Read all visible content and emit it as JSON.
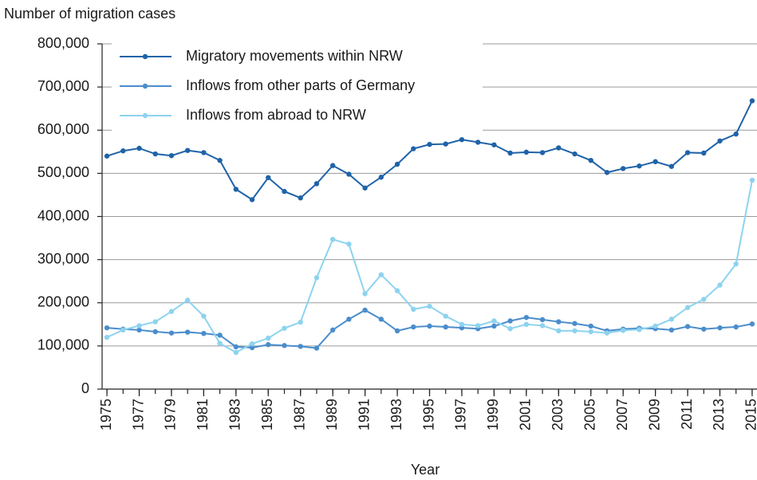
{
  "chart_data": {
    "type": "line",
    "y_label": "Number of migration cases",
    "x_label": "Year",
    "x": [
      1975,
      1976,
      1977,
      1978,
      1979,
      1980,
      1981,
      1982,
      1983,
      1984,
      1985,
      1986,
      1987,
      1988,
      1989,
      1990,
      1991,
      1992,
      1993,
      1994,
      1995,
      1996,
      1997,
      1998,
      1999,
      2000,
      2001,
      2002,
      2003,
      2004,
      2005,
      2006,
      2007,
      2008,
      2009,
      2010,
      2011,
      2012,
      2013,
      2014,
      2015
    ],
    "xlim": [
      1974.7,
      2015.3
    ],
    "xticks": [
      1975,
      1977,
      1979,
      1981,
      1983,
      1985,
      1987,
      1989,
      1991,
      1993,
      1995,
      1997,
      1999,
      2001,
      2003,
      2005,
      2007,
      2009,
      2011,
      2013,
      2015
    ],
    "ylim": [
      0,
      800000
    ],
    "yticks": [
      0,
      {
        "value": 100000,
        "label": "100,000"
      },
      {
        "value": 200000,
        "label": "200,000"
      },
      {
        "value": 300000,
        "label": "300,000"
      },
      {
        "value": 400000,
        "label": "400,000"
      },
      {
        "value": 500000,
        "label": "500,000"
      },
      {
        "value": 600000,
        "label": "600,000"
      },
      {
        "value": 700000,
        "label": "700,000"
      },
      {
        "value": 800000,
        "label": "800,000"
      }
    ],
    "grid": true,
    "legend": "upper left",
    "series": [
      {
        "name": "Migratory movements within NRW",
        "color": "#1f63a8",
        "values": [
          540000,
          552000,
          558000,
          545000,
          541000,
          553000,
          548000,
          530000,
          463000,
          439000,
          490000,
          458000,
          443000,
          476000,
          518000,
          498000,
          466000,
          491000,
          521000,
          557000,
          567000,
          568000,
          578000,
          572000,
          566000,
          547000,
          549000,
          548000,
          559000,
          545000,
          530000,
          502000,
          511000,
          517000,
          527000,
          516000,
          548000,
          547000,
          575000,
          591000,
          668000
        ]
      },
      {
        "name": "Inflows from other parts of Germany",
        "color": "#4a8dcc",
        "values": [
          142000,
          139000,
          137000,
          133000,
          130000,
          132000,
          129000,
          125000,
          98000,
          96000,
          103000,
          101000,
          99000,
          95000,
          137000,
          162000,
          183000,
          162000,
          135000,
          144000,
          146000,
          144000,
          142000,
          140000,
          146000,
          158000,
          166000,
          161000,
          156000,
          152000,
          146000,
          135000,
          139000,
          141000,
          140000,
          137000,
          145000,
          139000,
          142000,
          144000,
          151000
        ]
      },
      {
        "name": "Inflows from abroad to NRW",
        "color": "#8dd3ef",
        "values": [
          120000,
          137000,
          147000,
          156000,
          180000,
          206000,
          169000,
          106000,
          85000,
          105000,
          118000,
          141000,
          155000,
          258000,
          347000,
          336000,
          221000,
          265000,
          228000,
          185000,
          192000,
          169000,
          150000,
          147000,
          158000,
          140000,
          150000,
          147000,
          135000,
          135000,
          133000,
          130000,
          136000,
          138000,
          146000,
          162000,
          189000,
          208000,
          241000,
          290000,
          484000
        ]
      }
    ]
  }
}
